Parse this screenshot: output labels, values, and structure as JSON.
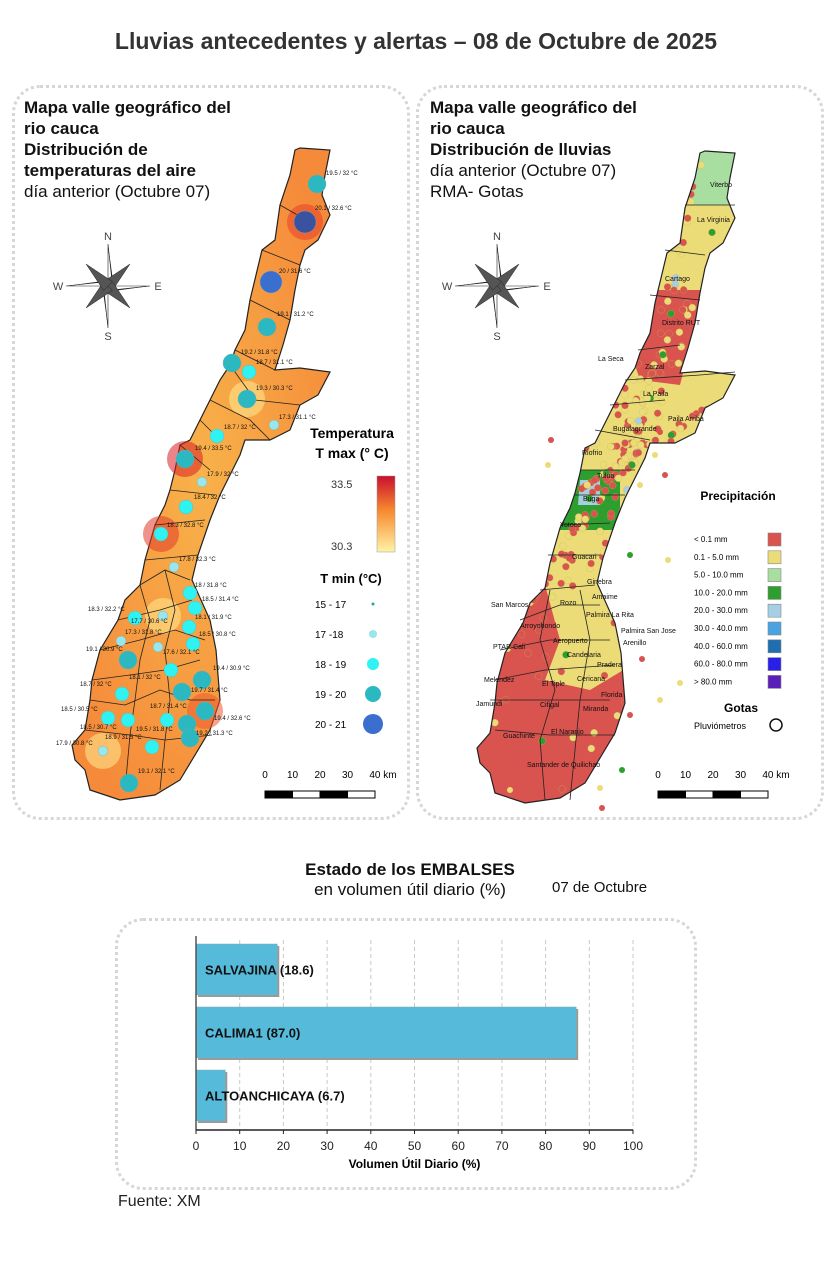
{
  "title": "Lluvias antecedentes y alertas – 08 de Octubre de 2025",
  "temperature_map": {
    "title_lines": [
      "Mapa valle geográfico del",
      "rio cauca",
      "Distribución de",
      "temperaturas del aire"
    ],
    "subtitle": "día anterior (Octubre 07)",
    "compass": {
      "n": "N",
      "s": "S",
      "e": "E",
      "w": "W"
    },
    "legend_tmax": {
      "title1": "Temperatura",
      "title2": "T max (° C)",
      "max": "33.5",
      "min": "30.3",
      "color_high": "#c8102e",
      "color_low": "#fff3a8"
    },
    "legend_tmin": {
      "title": "T min (°C)",
      "classes": [
        {
          "label": "15 - 17",
          "color": "#2aa89a"
        },
        {
          "label": "17 -18",
          "color": "#9ae6ea"
        },
        {
          "label": "18 - 19",
          "color": "#2ff2f2"
        },
        {
          "label": "19 - 20",
          "color": "#2bb8c0"
        },
        {
          "label": "20 - 21",
          "color": "#3a6fcf"
        }
      ]
    },
    "stations": [
      "19.5 / 32 °C",
      "20.1 / 32.6 °C",
      "20 / 31.6 °C",
      "19.1 / 31.2 °C",
      "19.2 / 31.8 °C",
      "18.7 / 31.1 °C",
      "19.3 / 30.3 °C",
      "17.3 / 31.1 °C",
      "18.7 / 32 °C",
      "19.4 / 33.5 °C",
      "17.9 / 32 °C",
      "18.4 / 32 °C",
      "18.3 / 32.8 °C",
      "17.8 / 32.3 °C",
      "18 / 31.8 °C",
      "18.5 / 31.4 °C",
      "18.3 / 32.2 °C",
      "17.7 / 30.6 °C",
      "18.1 / 31.9 °C",
      "17.3 / 31.8 °C",
      "18.5 / 30.8 °C",
      "19.1 / 30.9 °C",
      "17.6 / 32.1 °C",
      "19.4 / 30.9 °C",
      "18.1 / 32 °C",
      "18.7 / 32 °C",
      "19.7 / 31.4 °C",
      "18.5 / 30.5 °C",
      "18.7 / 31.4 °C",
      "19.4 / 32.6 °C",
      "18.5 / 30.7 °C",
      "19.5 / 31.8 °C",
      "19.2 / 31.3 °C",
      "18.9 / 31.5 °C",
      "17.9 / 30.8 °C",
      "19.1 / 32.1 °C"
    ],
    "scale_labels": [
      "0",
      "10",
      "20",
      "30",
      "40 km"
    ]
  },
  "rain_map": {
    "title_lines": [
      "Mapa valle geográfico del",
      "rio cauca"
    ],
    "title_bold": "Distribución de lluvias",
    "subtitle_lines": [
      "día anterior (Octubre 07)",
      "RMA- Gotas"
    ],
    "compass": {
      "n": "N",
      "s": "S",
      "e": "E",
      "w": "W"
    },
    "places": [
      "Viterbo",
      "La Virginia",
      "Cartago",
      "Distrito RUT",
      "La Seca",
      "Zarzal",
      "La Paila",
      "Paila Arriba",
      "Bugalagrande",
      "Riofrio",
      "Tulua",
      "Buga",
      "Yotoco",
      "Guacari",
      "Ginebra",
      "Amaime",
      "Rozo",
      "San Marcos",
      "Palmira La Rita",
      "Arroyohondo",
      "Palmira San Jose",
      "Aeropuerto",
      "Arenillo",
      "PTAR Cali",
      "Candelaria",
      "Pradera",
      "Melendez",
      "El Tiple",
      "Cericana",
      "Florida",
      "Jamundi",
      "Cifigal",
      "Miranda",
      "El Naranjo",
      "Guachinte",
      "Santander de Quilichao"
    ],
    "legend": {
      "title": "Precipitación",
      "classes": [
        {
          "label": "< 0.1 mm",
          "color": "#d9534f"
        },
        {
          "label": "0.1 - 5.0 mm",
          "color": "#ecdc78"
        },
        {
          "label": "5.0 - 10.0 mm",
          "color": "#a8dea0"
        },
        {
          "label": "10.0 - 20.0 mm",
          "color": "#2e9e2e"
        },
        {
          "label": "20.0 - 30.0 mm",
          "color": "#a6cfe3"
        },
        {
          "label": "30.0 - 40.0 mm",
          "color": "#4aa3e0"
        },
        {
          "label": "40.0 - 60.0 mm",
          "color": "#1f6fb0"
        },
        {
          "label": "60.0 - 80.0 mm",
          "color": "#2a1fe8"
        },
        {
          "label": "> 80.0 mm",
          "color": "#5a1fb8"
        }
      ]
    },
    "gotas": {
      "title": "Gotas",
      "item": "Pluviómetros"
    },
    "scale_labels": [
      "0",
      "10",
      "20",
      "30",
      "40 km"
    ]
  },
  "reservoirs": {
    "title": "Estado de los EMBALSES",
    "subtitle": "en volumen útil diario (%)",
    "date": "07 de Octubre",
    "source": "Fuente: XM"
  },
  "chart_data": {
    "type": "bar",
    "orientation": "horizontal",
    "categories": [
      "SALVAJINA",
      "CALIMA1",
      "ALTOANCHICAYA"
    ],
    "values": [
      18.6,
      87.0,
      6.7
    ],
    "data_labels": [
      "SALVAJINA (18.6)",
      "CALIMA1 (87.0)",
      "ALTOANCHICAYA (6.7)"
    ],
    "xlabel": "Volumen Útil Diario (%)",
    "xlim": [
      0,
      100
    ],
    "xticks": [
      "0",
      "10",
      "20",
      "30",
      "40",
      "50",
      "60",
      "70",
      "80",
      "90",
      "100"
    ],
    "grid": "vertical dashed",
    "bar_color": "#56bada"
  }
}
